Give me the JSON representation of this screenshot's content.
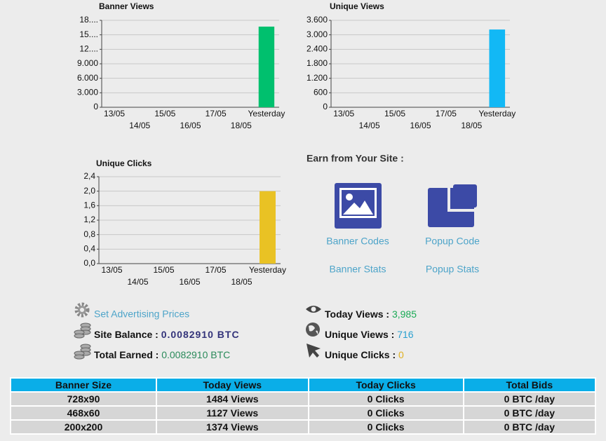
{
  "chart_data": [
    {
      "type": "bar",
      "title": "Banner Views",
      "categories": [
        "13/05",
        "14/05",
        "15/05",
        "16/05",
        "17/05",
        "18/05",
        "Yesterday"
      ],
      "values": [
        0,
        0,
        0,
        0,
        0,
        0,
        16700
      ],
      "color": "#00c06e",
      "ylim": [
        0,
        18000
      ],
      "yticks": [
        0,
        {
          "value": 3000,
          "label": "3.000"
        },
        {
          "value": 6000,
          "label": "6.000"
        },
        {
          "value": 9000,
          "label": "9.000"
        },
        {
          "value": 12000,
          "label": "12...."
        },
        {
          "value": 15000,
          "label": "15...."
        },
        {
          "value": 18000,
          "label": "18...."
        }
      ],
      "grid": true
    },
    {
      "type": "bar",
      "title": "Unique Views",
      "categories": [
        "13/05",
        "14/05",
        "15/05",
        "16/05",
        "17/05",
        "18/05",
        "Yesterday"
      ],
      "values": [
        0,
        0,
        0,
        0,
        0,
        0,
        3220
      ],
      "color": "#12b8f5",
      "ylim": [
        0,
        3600
      ],
      "yticks": [
        0,
        600,
        {
          "value": 1200,
          "label": "1.200"
        },
        {
          "value": 1800,
          "label": "1.800"
        },
        {
          "value": 2400,
          "label": "2.400"
        },
        {
          "value": 3000,
          "label": "3.000"
        },
        {
          "value": 3600,
          "label": "3.600"
        }
      ],
      "grid": true
    },
    {
      "type": "bar",
      "title": "Unique Clicks",
      "categories": [
        "13/05",
        "14/05",
        "15/05",
        "16/05",
        "17/05",
        "18/05",
        "Yesterday"
      ],
      "values": [
        0,
        0,
        0,
        0,
        0,
        0,
        2
      ],
      "color": "#e9c224",
      "ylim": [
        0,
        2.4
      ],
      "yticks": [
        {
          "value": 0,
          "label": "0,0"
        },
        {
          "value": 0.4,
          "label": "0,4"
        },
        {
          "value": 0.8,
          "label": "0,8"
        },
        {
          "value": 1.2,
          "label": "1,2"
        },
        {
          "value": 1.6,
          "label": "1,6"
        },
        {
          "value": 2.0,
          "label": "2,0"
        },
        {
          "value": 2.4,
          "label": "2,4"
        }
      ],
      "grid": true
    }
  ],
  "earn": {
    "title": "Earn from Your Site :",
    "links": [
      "Banner Codes",
      "Popup Code",
      "Banner Stats",
      "Popup Stats"
    ]
  },
  "account": {
    "link": "Set Advertising Prices",
    "balance": {
      "label": "Site Balance :",
      "value": "0.0082910 BTC"
    },
    "earned": {
      "label": "Total Earned :",
      "value": "0.0082910 BTC"
    }
  },
  "stats": [
    {
      "label": "Today Views :",
      "value": "3,985"
    },
    {
      "label": "Unique Views :",
      "value": "716"
    },
    {
      "label": "Unique Clicks :",
      "value": "0"
    }
  ],
  "table": {
    "header": [
      "Banner Size",
      "Today Views",
      "Today Clicks",
      "Total Bids"
    ],
    "rows": [
      [
        "728x90",
        "1484 Views",
        "0 Clicks",
        "0 BTC /day"
      ],
      [
        "468x60",
        "1127 Views",
        "0 Clicks",
        "0 BTC /day"
      ],
      [
        "200x200",
        "1374 Views",
        "0 Clicks",
        "0 BTC /day"
      ]
    ]
  }
}
